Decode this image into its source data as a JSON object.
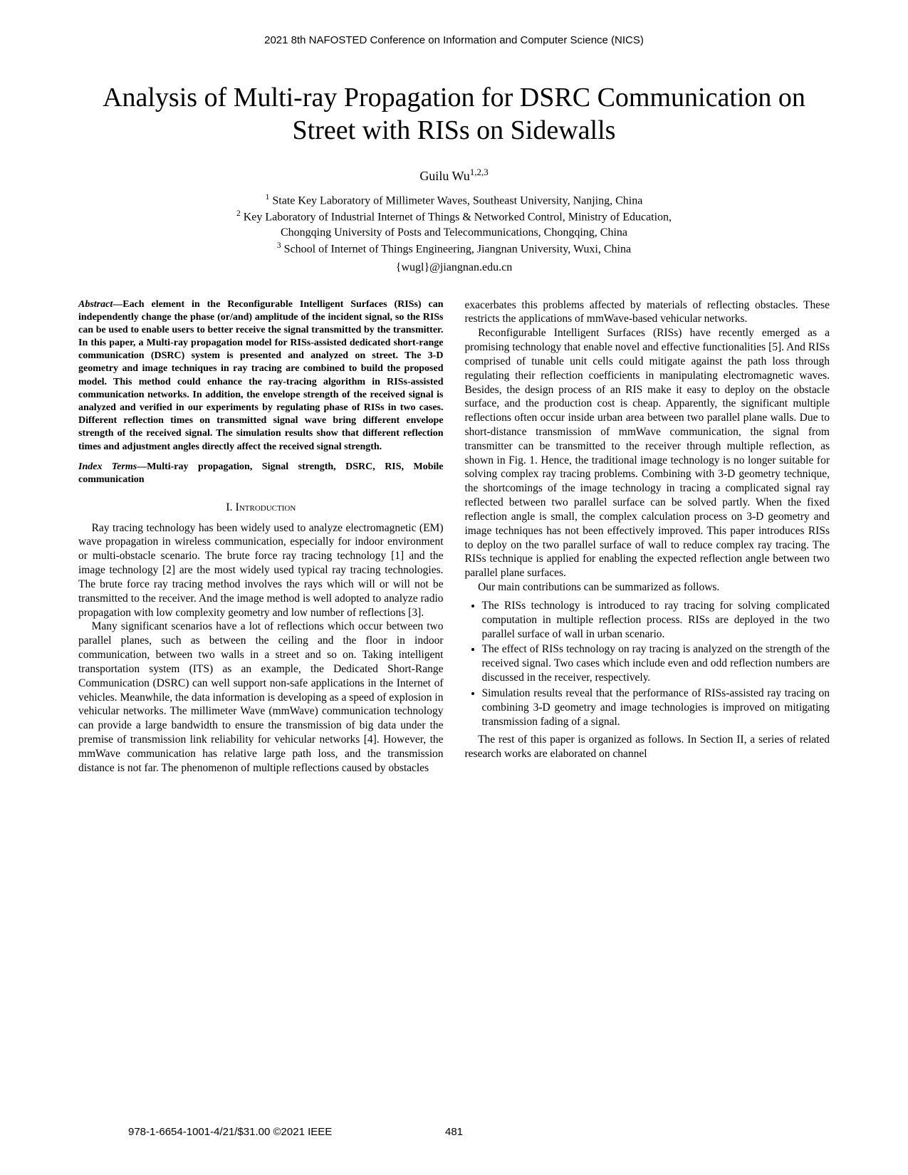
{
  "header": "2021 8th NAFOSTED Conference on Information and Computer Science (NICS)",
  "title": "Analysis of Multi-ray Propagation for DSRC Communication on Street with RISs on Sidewalls",
  "author_name": "Guilu Wu",
  "author_sup": "1,2,3",
  "aff1": "State Key Laboratory of Millimeter Waves, Southeast University, Nanjing, China",
  "aff2a": "Key Laboratory of Industrial Internet of Things & Networked Control, Ministry of Education,",
  "aff2b": "Chongqing University of Posts and Telecommunications, Chongqing, China",
  "aff3": "School of Internet of Things Engineering, Jiangnan University, Wuxi, China",
  "email": "{wugl}@jiangnan.edu.cn",
  "abstract_label": "Abstract",
  "abstract_body": "—Each element in the Reconfigurable Intelligent Surfaces (RISs) can independently change the phase (or/and) amplitude of the incident signal, so the RISs can be used to enable users to better receive the signal transmitted by the transmitter. In this paper, a Multi-ray propagation model for RISs-assisted dedicated short-range communication (DSRC) system is presented and analyzed on street. The 3-D geometry and image techniques in ray tracing are combined to build the proposed model. This method could enhance the ray-tracing algorithm in RISs-assisted communication networks. In addition, the envelope strength of the received signal is analyzed and verified in our experiments by regulating phase of RISs in two cases. Different reflection times on transmitted signal wave bring different envelope strength of the received signal. The simulation results show that different reflection times and adjustment angles directly affect the received signal strength.",
  "index_label": "Index Terms",
  "index_body": "—Multi-ray propagation, Signal strength, DSRC, RIS, Mobile communication",
  "section1": "I.  Introduction",
  "p1": "Ray tracing technology has been widely used to analyze electromagnetic (EM) wave propagation in wireless communication, especially for indoor environment or multi-obstacle scenario. The brute force ray tracing technology [1] and the image technology [2] are the most widely used typical ray tracing technologies. The brute force ray tracing method involves the rays which will or will not be transmitted to the receiver. And the image method is well adopted to analyze radio propagation with low complexity geometry and low number of reflections [3].",
  "p2": "Many significant scenarios have a lot of reflections which occur between two parallel planes, such as between the ceiling and the floor in indoor communication, between two walls in a street and so on. Taking intelligent transportation system (ITS) as an example, the Dedicated Short-Range Communication (DSRC) can well support non-safe applications in the Internet of vehicles. Meanwhile, the data information is developing as a speed of explosion in vehicular networks. The millimeter Wave (mmWave) communication technology can provide a large bandwidth to ensure the transmission of big data under the premise of transmission link reliability for vehicular networks [4]. However, the mmWave communication has relative large path loss, and the transmission distance is not far. The phenomenon of multiple reflections caused by obstacles",
  "p3": "exacerbates this problems affected by materials of reflecting obstacles. These restricts the applications of mmWave-based vehicular networks.",
  "p4": "Reconfigurable Intelligent Surfaces (RISs) have recently emerged as a promising technology that enable novel and effective functionalities [5]. And RISs comprised of tunable unit cells could mitigate against the path loss through regulating their reflection coefficients in manipulating electromagnetic waves. Besides, the design process of an RIS make it easy to deploy on the obstacle surface, and the production cost is cheap. Apparently, the significant multiple reflections often occur inside urban area between two parallel plane walls. Due to short-distance transmission of mmWave communication, the signal from transmitter can be transmitted to the receiver through multiple reflection, as shown in Fig. 1. Hence, the traditional image technology is no longer suitable for solving complex ray tracing problems. Combining with 3-D geometry technique, the shortcomings of the image technology in tracing a complicated signal ray reflected between two parallel surface can be solved partly. When the fixed reflection angle is small, the complex calculation process on 3-D geometry and image techniques has not been effectively improved. This paper introduces RISs to deploy on the two parallel surface of wall to reduce complex ray tracing. The RISs technique is applied for enabling the expected reflection angle between two parallel plane surfaces.",
  "p5": "Our main contributions can be summarized as follows.",
  "c1": "The RISs technology is introduced to ray tracing for solving complicated computation in multiple reflection process. RISs are deployed in the two parallel surface of wall in urban scenario.",
  "c2": "The effect of RISs technology on ray tracing is analyzed on the strength of the received signal. Two cases which include even and odd reflection numbers are discussed in the receiver, respectively.",
  "c3": "Simulation results reveal that the performance of RISs-assisted ray tracing on combining 3-D geometry and image technologies is improved on mitigating transmission fading of a signal.",
  "p6": "The rest of this paper is organized as follows. In Section II, a series of related research works are elaborated on channel",
  "footer_left": "978-1-6654-1001-4/21/$31.00 ©2021 IEEE",
  "footer_center": "481"
}
